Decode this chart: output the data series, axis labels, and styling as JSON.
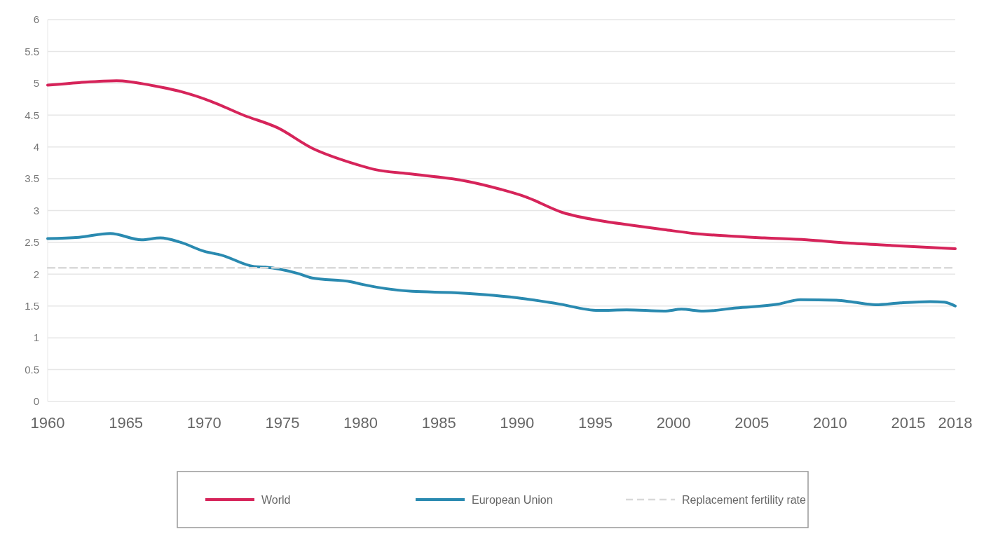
{
  "chart_data": {
    "type": "line",
    "xlim": [
      1960,
      2018
    ],
    "xticks": [
      1960,
      1965,
      1970,
      1975,
      1980,
      1985,
      1990,
      1995,
      2000,
      2005,
      2010,
      2015,
      2018
    ],
    "ylim": [
      0,
      6
    ],
    "yticks": [
      0,
      0.5,
      1,
      1.5,
      2,
      2.5,
      3,
      3.5,
      4,
      4.5,
      5,
      5.5,
      6
    ],
    "grid": "y",
    "legend": "bottom",
    "series": [
      {
        "name": "World",
        "color": "#d6245a",
        "x": [
          1960,
          1962,
          1964.4,
          1966.8,
          1968.5,
          1970.4,
          1972.5,
          1974.7,
          1976.9,
          1979.4,
          1981,
          1983,
          1986.8,
          1989,
          1990.5,
          1992.9,
          1995.6,
          1997,
          1999.4,
          2001.3,
          2003.5,
          2005.8,
          2008.5,
          2011.1,
          2014,
          2018
        ],
        "values": [
          4.97,
          5.01,
          5.04,
          4.96,
          4.87,
          4.72,
          4.5,
          4.3,
          3.98,
          3.75,
          3.64,
          3.58,
          3.46,
          3.33,
          3.22,
          2.97,
          2.83,
          2.78,
          2.7,
          2.64,
          2.6,
          2.57,
          2.54,
          2.49,
          2.45,
          2.4
        ]
      },
      {
        "name": "European Union",
        "color": "#2a8ab0",
        "x": [
          1960,
          1962,
          1964,
          1966,
          1967.2,
          1968.5,
          1970,
          1971.1,
          1973.2,
          1973.9,
          1976,
          1976.9,
          1979.4,
          1980.1,
          1983.3,
          1986,
          1987.9,
          1990,
          1992.5,
          1995.2,
          1997,
          1999.4,
          2000.5,
          2001.9,
          2004,
          2006.7,
          2008.1,
          2010.4,
          2011.5,
          2012.9,
          2014.5,
          2016.4,
          2017.3,
          2018
        ],
        "values": [
          2.56,
          2.58,
          2.64,
          2.54,
          2.57,
          2.5,
          2.36,
          2.3,
          2.12,
          2.11,
          2.01,
          1.94,
          1.88,
          1.84,
          1.73,
          1.71,
          1.68,
          1.63,
          1.54,
          1.43,
          1.44,
          1.42,
          1.45,
          1.42,
          1.47,
          1.53,
          1.6,
          1.59,
          1.56,
          1.52,
          1.55,
          1.57,
          1.56,
          1.5
        ]
      },
      {
        "name": "Replacement fertility rate",
        "color": "#d9d9d9",
        "line_style": "dashed",
        "x": [
          1960,
          2018
        ],
        "values": [
          2.1,
          2.1
        ]
      }
    ]
  }
}
